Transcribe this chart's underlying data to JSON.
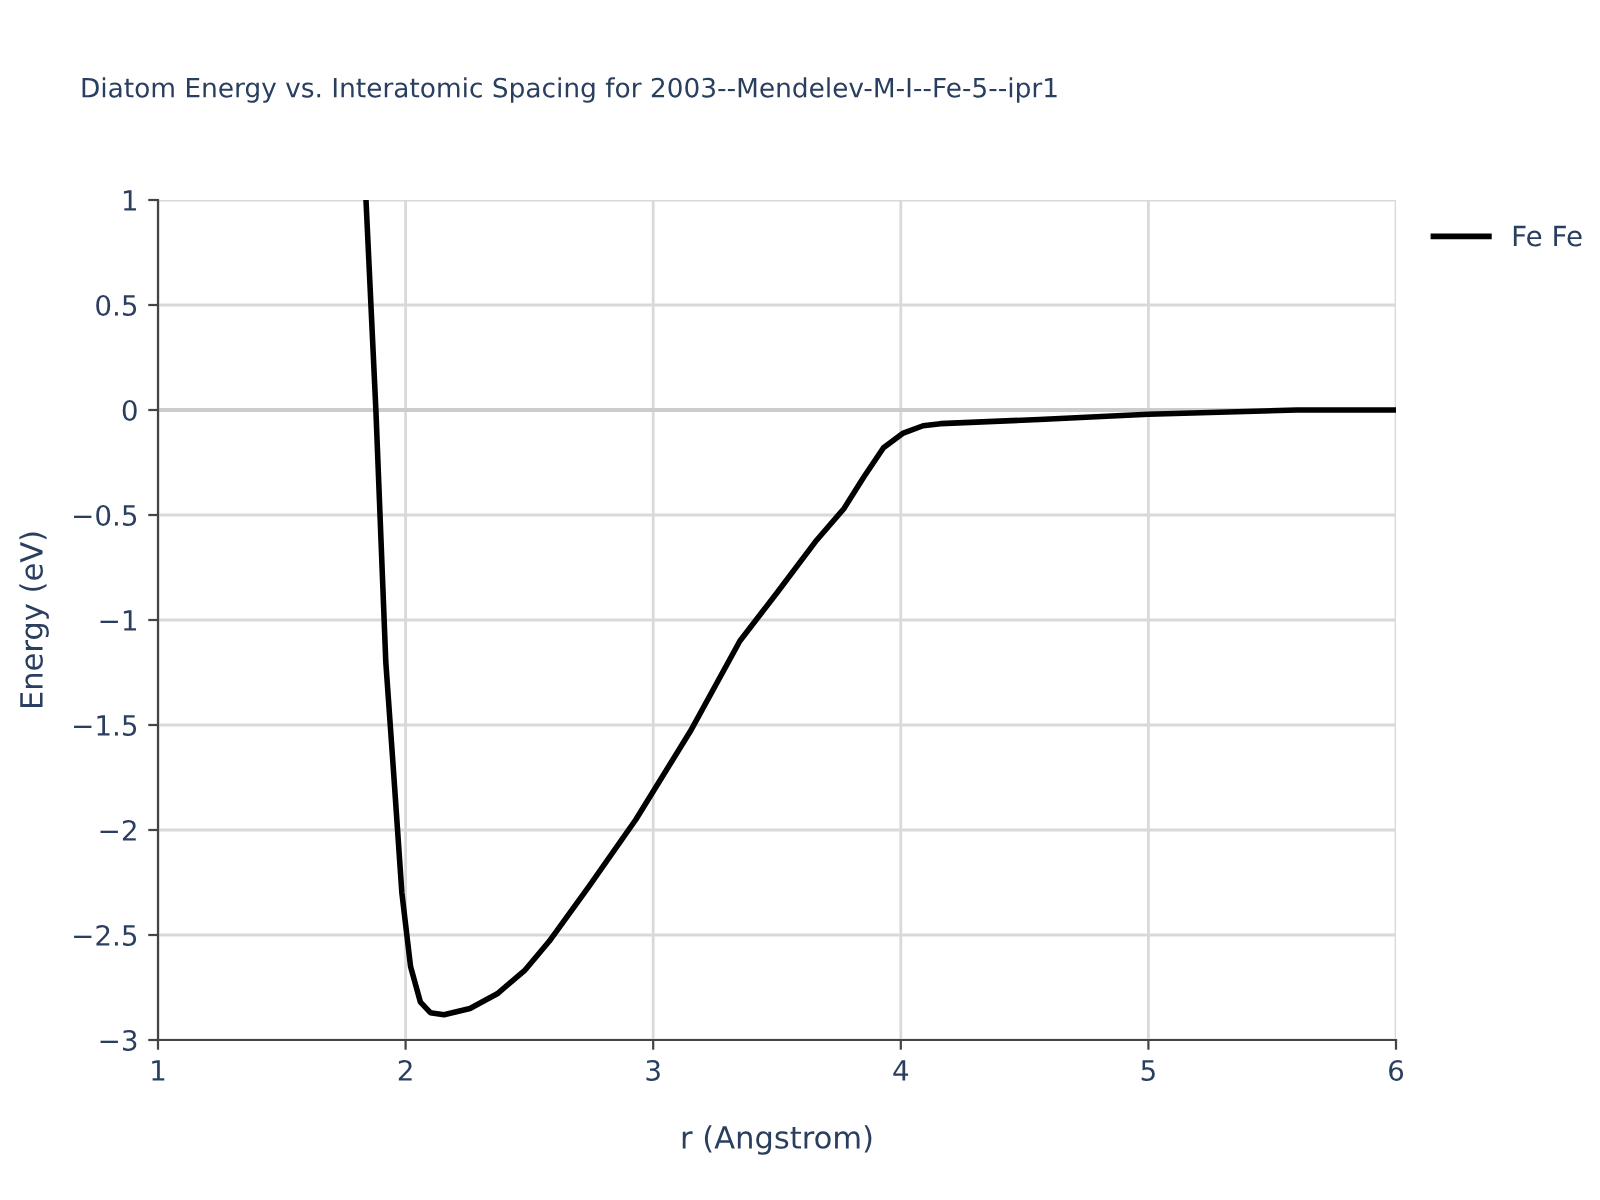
{
  "chart_data": {
    "type": "line",
    "title": "Diatom Energy vs. Interatomic Spacing for 2003--Mendelev-M-I--Fe-5--ipr1",
    "xlabel": "r (Angstrom)",
    "ylabel": "Energy (eV)",
    "series": [
      {
        "name": "Fe Fe",
        "color": "#000000",
        "x": [
          1.84,
          1.88,
          1.92,
          1.95,
          1.985,
          2.02,
          2.06,
          2.1,
          2.155,
          2.26,
          2.37,
          2.48,
          2.58,
          2.74,
          2.93,
          3.15,
          3.35,
          3.5,
          3.66,
          3.77,
          3.85,
          3.93,
          4.01,
          4.09,
          4.16,
          4.56,
          5.0,
          5.6,
          6.0
        ],
        "values": [
          1,
          0,
          -1.2,
          -1.7,
          -2.3,
          -2.65,
          -2.82,
          -2.87,
          -2.88,
          -2.85,
          -2.78,
          -2.67,
          -2.53,
          -2.27,
          -1.95,
          -1.53,
          -1.1,
          -0.87,
          -0.62,
          -0.47,
          -0.32,
          -0.18,
          -0.11,
          -0.075,
          -0.065,
          -0.045,
          -0.02,
          0,
          0
        ]
      }
    ],
    "xlim": [
      1,
      6
    ],
    "xticks": [
      1,
      2,
      3,
      4,
      5,
      6
    ],
    "ylim": [
      -3,
      1
    ],
    "yticks": [
      1,
      0.5,
      0,
      {
        "value": -0.5,
        "label": "−0.5"
      },
      {
        "value": -1,
        "label": "−1"
      },
      {
        "value": -1.5,
        "label": "−1.5"
      },
      {
        "value": -2,
        "label": "−2"
      },
      {
        "value": -2.5,
        "label": "−2.5"
      },
      {
        "value": -3,
        "label": "−3"
      }
    ],
    "grid": true,
    "legend": "top right",
    "line_style": "solid",
    "marker": "none"
  }
}
